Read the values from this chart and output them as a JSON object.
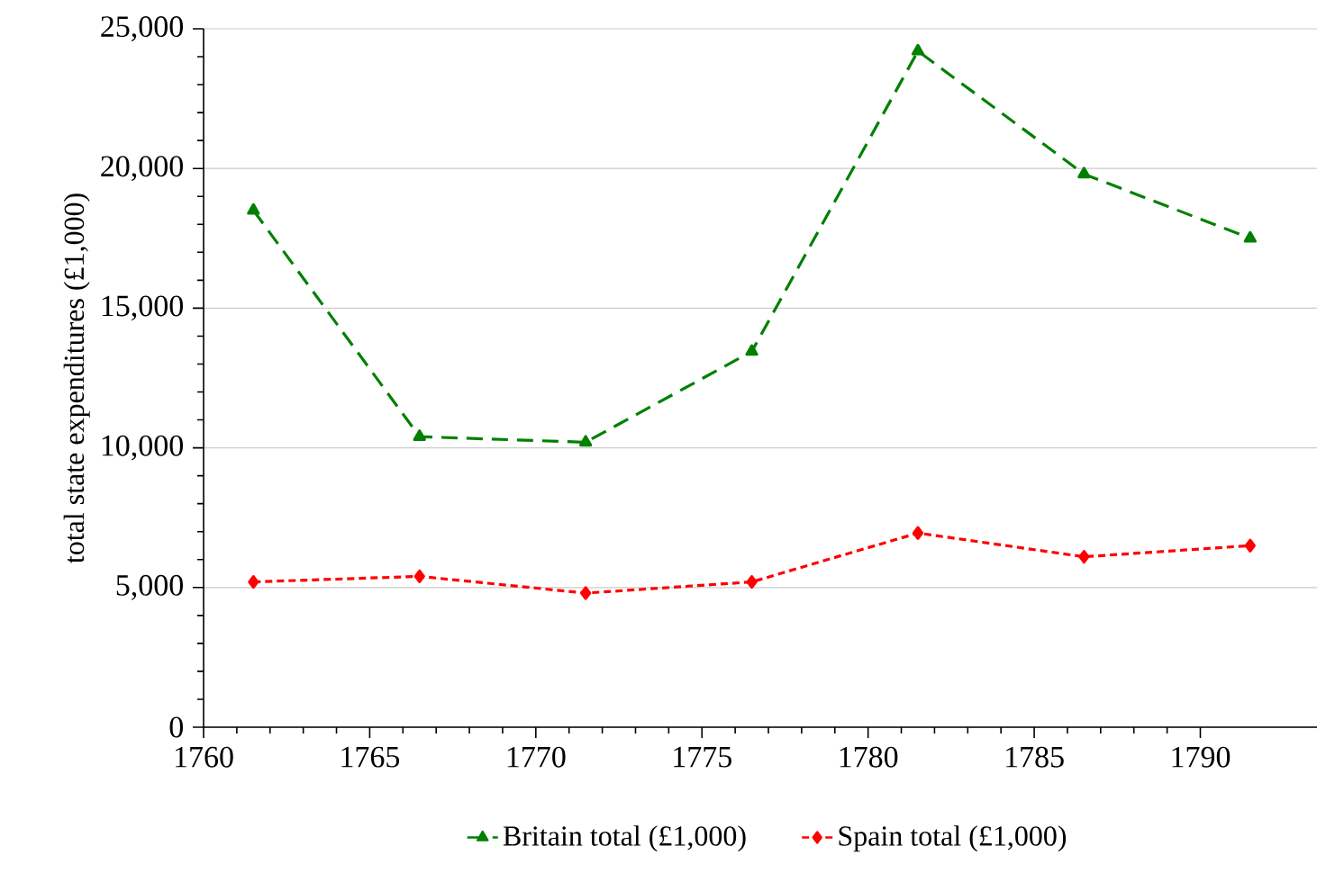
{
  "chart_data": {
    "type": "line",
    "ylabel": "total state expenditures (£1,000)",
    "x": [
      1761.5,
      1766.5,
      1771.5,
      1776.5,
      1781.5,
      1786.5,
      1791.5
    ],
    "series": [
      {
        "name": "Britain total (£1,000)",
        "color": "#008000",
        "marker": "triangle",
        "line_style": "dashed",
        "values": [
          18500,
          10400,
          10200,
          13450,
          24200,
          19800,
          17500
        ]
      },
      {
        "name": "Spain total (£1,000)",
        "color": "#ff0000",
        "marker": "diamond",
        "line_style": "dotted",
        "values": [
          5200,
          5400,
          4800,
          5200,
          6950,
          6100,
          6500
        ]
      }
    ],
    "xlim": [
      1760,
      1794
    ],
    "xticks": [
      1760,
      1765,
      1770,
      1775,
      1780,
      1785,
      1790
    ],
    "ylim": [
      0,
      25000
    ],
    "yticks": [
      {
        "value": 0,
        "label": "0"
      },
      {
        "value": 5000,
        "label": "5,000"
      },
      {
        "value": 10000,
        "label": "10,000"
      },
      {
        "value": 15000,
        "label": "15,000"
      },
      {
        "value": 20000,
        "label": "20,000"
      },
      {
        "value": 25000,
        "label": "25,000"
      }
    ],
    "grid": "y",
    "legend": "bottom"
  }
}
